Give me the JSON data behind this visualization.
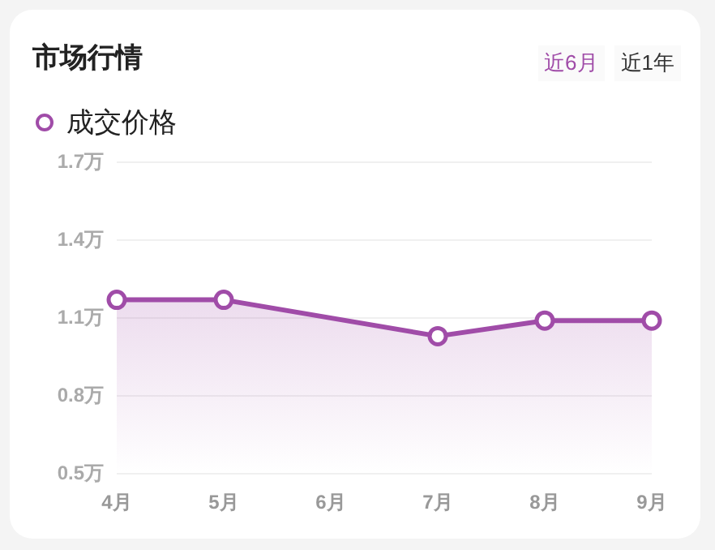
{
  "chart_data": {
    "type": "area",
    "title": "市场行情",
    "annotations": [
      "近6月",
      "近1年"
    ],
    "categories": [
      "4月",
      "5月",
      "6月",
      "7月",
      "8月",
      "9月"
    ],
    "series": [
      {
        "name": "成交价格",
        "color": "#a04ca8",
        "values": [
          1.17,
          1.17,
          null,
          1.03,
          1.09,
          1.09
        ]
      }
    ],
    "ylim": [
      0.5,
      1.7
    ],
    "yticks": [
      {
        "value": 0.5,
        "label": "0.5万"
      },
      {
        "value": 0.8,
        "label": "0.8万"
      },
      {
        "value": 1.1,
        "label": "1.1万"
      },
      {
        "value": 1.4,
        "label": "1.4万"
      },
      {
        "value": 1.7,
        "label": "1.7万"
      }
    ],
    "grid": "y",
    "legend": "top left",
    "marker": "circle",
    "line_style": "solid"
  }
}
